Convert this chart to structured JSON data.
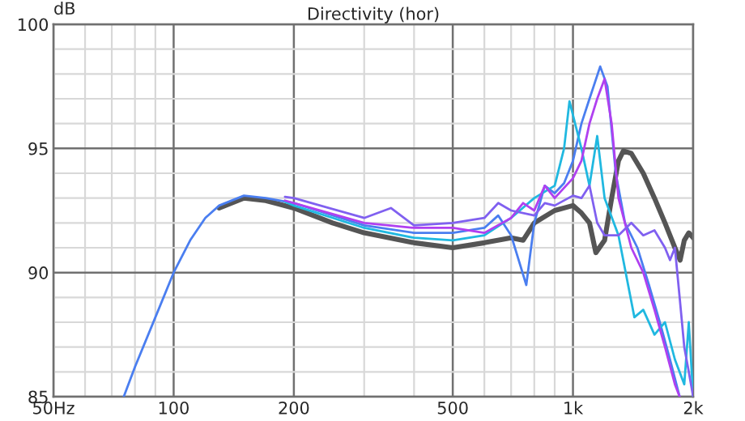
{
  "chart_data": {
    "type": "line",
    "title": "Directivity (hor)",
    "ylabel": "dB",
    "log": "x",
    "grid": true,
    "legend": false,
    "marker": "none",
    "line_style": "solid",
    "xlim": [
      50,
      2000
    ],
    "xticks": [
      {
        "value": 50,
        "label": "50Hz"
      },
      100,
      200,
      500,
      {
        "value": 1000,
        "label": "1k"
      },
      {
        "value": 2000,
        "label": "2k"
      }
    ],
    "ylim": [
      85,
      100
    ],
    "yticks": [
      85,
      90,
      95,
      100
    ],
    "series": [
      {
        "color": "#555555",
        "x": [
          130,
          150,
          170,
          200,
          250,
          300,
          400,
          500,
          600,
          700,
          750,
          800,
          900,
          1000,
          1050,
          1100,
          1141,
          1200,
          1250,
          1300,
          1337,
          1400,
          1500,
          1600,
          1700,
          1800,
          1855,
          1900,
          1950,
          2000
        ],
        "values": [
          92.6,
          93.0,
          92.9,
          92.6,
          92.0,
          91.6,
          91.2,
          91.0,
          91.2,
          91.4,
          91.3,
          92.0,
          92.5,
          92.7,
          92.4,
          92.0,
          90.8,
          91.3,
          93.0,
          94.5,
          94.9,
          94.8,
          94.0,
          93.0,
          92.0,
          91.0,
          90.5,
          91.3,
          91.6,
          91.4
        ]
      },
      {
        "color": "#4a7ef0",
        "x": [
          75,
          80,
          90,
          100,
          110,
          120,
          130,
          150,
          170,
          200,
          300,
          400,
          500,
          600,
          650,
          700,
          764,
          800,
          850,
          900,
          950,
          1000,
          1050,
          1100,
          1170,
          1220,
          1280,
          1350,
          1450,
          1550,
          1650,
          1750,
          1850
        ],
        "values": [
          85,
          86.2,
          88.2,
          90,
          91.3,
          92.2,
          92.7,
          93.1,
          93.0,
          92.8,
          91.9,
          91.6,
          91.6,
          91.8,
          92.3,
          91.5,
          89.5,
          92.0,
          93.5,
          93.2,
          93.6,
          94.5,
          96.0,
          97.0,
          98.3,
          97.5,
          94.0,
          92.0,
          91.0,
          89.5,
          88.0,
          86.5,
          85
        ]
      },
      {
        "color": "#20b8e0",
        "x": [
          190,
          200,
          300,
          400,
          500,
          600,
          700,
          800,
          900,
          950,
          980,
          1050,
          1100,
          1150,
          1200,
          1300,
          1425,
          1500,
          1600,
          1700,
          1800,
          1900,
          1950,
          2000
        ],
        "values": [
          92.85,
          92.7,
          91.8,
          91.4,
          91.3,
          91.5,
          92.2,
          93.0,
          93.5,
          95.0,
          96.9,
          95.0,
          93.5,
          95.5,
          93.0,
          91.5,
          88.2,
          88.5,
          87.5,
          88.0,
          86.5,
          85.5,
          88.0,
          85
        ]
      },
      {
        "color": "#b040f0",
        "x": [
          190,
          200,
          300,
          400,
          500,
          600,
          700,
          750,
          800,
          850,
          900,
          1000,
          1050,
          1100,
          1150,
          1200,
          1250,
          1300,
          1400,
          1500,
          1600,
          1700,
          1800,
          1850
        ],
        "values": [
          92.9,
          92.8,
          92.0,
          91.8,
          91.8,
          91.6,
          92.2,
          92.8,
          92.5,
          93.5,
          93.0,
          93.8,
          94.5,
          96.0,
          97.0,
          97.8,
          96.0,
          93.0,
          91.0,
          90.0,
          88.5,
          87.0,
          85.5,
          85
        ]
      },
      {
        "color": "#8060f0",
        "x": [
          190,
          200,
          300,
          350,
          400,
          500,
          600,
          650,
          700,
          800,
          850,
          900,
          1000,
          1050,
          1100,
          1150,
          1200,
          1300,
          1400,
          1500,
          1600,
          1700,
          1750,
          1800,
          1850,
          1900,
          1950,
          2000
        ],
        "values": [
          93.05,
          93.0,
          92.2,
          92.6,
          91.9,
          92.0,
          92.2,
          92.8,
          92.5,
          92.3,
          92.8,
          92.7,
          93.1,
          93.0,
          93.5,
          92.0,
          91.5,
          91.5,
          92.0,
          91.5,
          91.7,
          91.0,
          90.5,
          91.0,
          89.0,
          87.0,
          86.0,
          85
        ]
      }
    ]
  }
}
